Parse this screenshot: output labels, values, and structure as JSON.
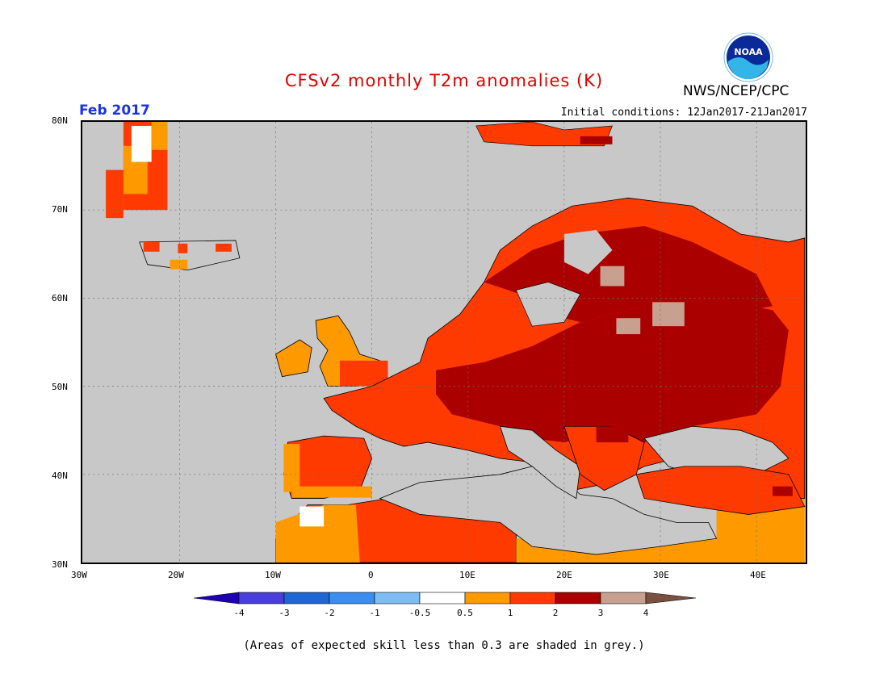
{
  "header": {
    "title": "CFSv2 monthly T2m anomalies (K)",
    "agency": "NWS/NCEP/CPC",
    "logo_text": "NOAA",
    "month": "Feb 2017",
    "initial_conditions": "Initial conditions: 12Jan2017-21Jan2017"
  },
  "map": {
    "lat_labels": [
      "80N",
      "70N",
      "60N",
      "50N",
      "40N",
      "30N"
    ],
    "lon_labels": [
      "30W",
      "20W",
      "10W",
      "0",
      "10E",
      "20E",
      "30E",
      "40E"
    ],
    "lat_range": [
      30,
      80
    ],
    "lon_range": [
      -30,
      45
    ],
    "background_color": "#c8c8c8",
    "grid": "dotted"
  },
  "colorbar": {
    "labels": [
      "-4",
      "-3",
      "-2",
      "-1",
      "-0.5",
      "0.5",
      "1",
      "2",
      "3",
      "4"
    ],
    "colors": [
      "#1e00b4",
      "#4a3ed8",
      "#1f66d4",
      "#3a8ef0",
      "#80bcf4",
      "#ffffff",
      "#ff9900",
      "#ff3a00",
      "#aa0000",
      "#c8a090",
      "#7a5040"
    ]
  },
  "footnote": "(Areas of expected skill less than 0.3 are shaded in grey.)"
}
